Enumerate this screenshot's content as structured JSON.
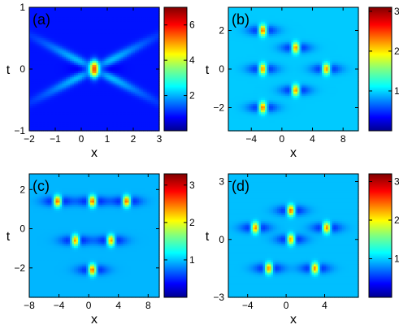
{
  "chart_data": [
    {
      "type": "heatmap",
      "panel_label": "(a)",
      "xlabel": "x",
      "ylabel": "t",
      "xlim": [
        -2,
        3
      ],
      "ylim": [
        -1,
        1
      ],
      "xticks": [
        -2,
        -1,
        0,
        1,
        2,
        3
      ],
      "yticks": [
        -1,
        0,
        1
      ],
      "colorbar": {
        "range": [
          0,
          7
        ],
        "ticks": [
          2,
          4,
          6
        ]
      },
      "colormap": [
        "#00008f",
        "#0000ff",
        "#0080ff",
        "#00ffff",
        "#80ff80",
        "#ffff00",
        "#ff8000",
        "#ff0000",
        "#800000"
      ],
      "background_level": 1.0,
      "peaks": [
        {
          "x": 0.5,
          "t": 0.0,
          "amp": 6.4,
          "shape": "x-shaped crossing of two arms"
        }
      ]
    },
    {
      "type": "heatmap",
      "panel_label": "(b)",
      "xlabel": "x",
      "ylabel": "t",
      "xlim": [
        -7,
        10
      ],
      "ylim": [
        -3.2,
        3.2
      ],
      "xticks": [
        -4,
        0,
        4,
        8
      ],
      "yticks": [
        -2,
        0,
        2
      ],
      "colorbar": {
        "range": [
          0,
          3.1
        ],
        "ticks": [
          1,
          2,
          3
        ]
      },
      "background_level": 1.0,
      "peaks": [
        {
          "x": -2.5,
          "t": 2.0,
          "amp": 3.0
        },
        {
          "x": -2.5,
          "t": 0.0,
          "amp": 2.9
        },
        {
          "x": -2.5,
          "t": -2.0,
          "amp": 3.0
        },
        {
          "x": 1.8,
          "t": 1.1,
          "amp": 2.9
        },
        {
          "x": 1.8,
          "t": -1.1,
          "amp": 2.9
        },
        {
          "x": 5.8,
          "t": 0.0,
          "amp": 2.9
        }
      ]
    },
    {
      "type": "heatmap",
      "panel_label": "(c)",
      "xlabel": "x",
      "ylabel": "t",
      "xlim": [
        -8,
        9.5
      ],
      "ylim": [
        -3.5,
        2.8
      ],
      "xticks": [
        -8,
        -4,
        0,
        4,
        8
      ],
      "yticks": [
        -2,
        0,
        2
      ],
      "colorbar": {
        "range": [
          0,
          3.3
        ],
        "ticks": [
          1,
          2,
          3
        ]
      },
      "background_level": 1.0,
      "peaks": [
        {
          "x": -4.2,
          "t": 1.4,
          "amp": 3.2
        },
        {
          "x": 0.5,
          "t": 1.4,
          "amp": 3.2
        },
        {
          "x": 5.1,
          "t": 1.4,
          "amp": 3.2
        },
        {
          "x": -1.8,
          "t": -0.6,
          "amp": 3.0
        },
        {
          "x": 3.0,
          "t": -0.6,
          "amp": 3.0
        },
        {
          "x": 0.5,
          "t": -2.1,
          "amp": 3.2
        }
      ]
    },
    {
      "type": "heatmap",
      "panel_label": "(d)",
      "xlabel": "x",
      "ylabel": "t",
      "xlim": [
        -6,
        7.5
      ],
      "ylim": [
        -3,
        3.4
      ],
      "xticks": [
        -4,
        0,
        4
      ],
      "yticks": [
        -3,
        0,
        3
      ],
      "colorbar": {
        "range": [
          0,
          3.2
        ],
        "ticks": [
          1,
          2,
          3
        ]
      },
      "background_level": 1.0,
      "peaks": [
        {
          "x": -3.2,
          "t": 0.6,
          "amp": 3.0
        },
        {
          "x": 0.5,
          "t": 1.5,
          "amp": 3.1
        },
        {
          "x": 0.5,
          "t": 0.0,
          "amp": 2.9
        },
        {
          "x": 4.2,
          "t": 0.6,
          "amp": 3.0
        },
        {
          "x": -1.8,
          "t": -1.5,
          "amp": 3.0
        },
        {
          "x": 3.0,
          "t": -1.5,
          "amp": 3.0
        }
      ]
    }
  ]
}
